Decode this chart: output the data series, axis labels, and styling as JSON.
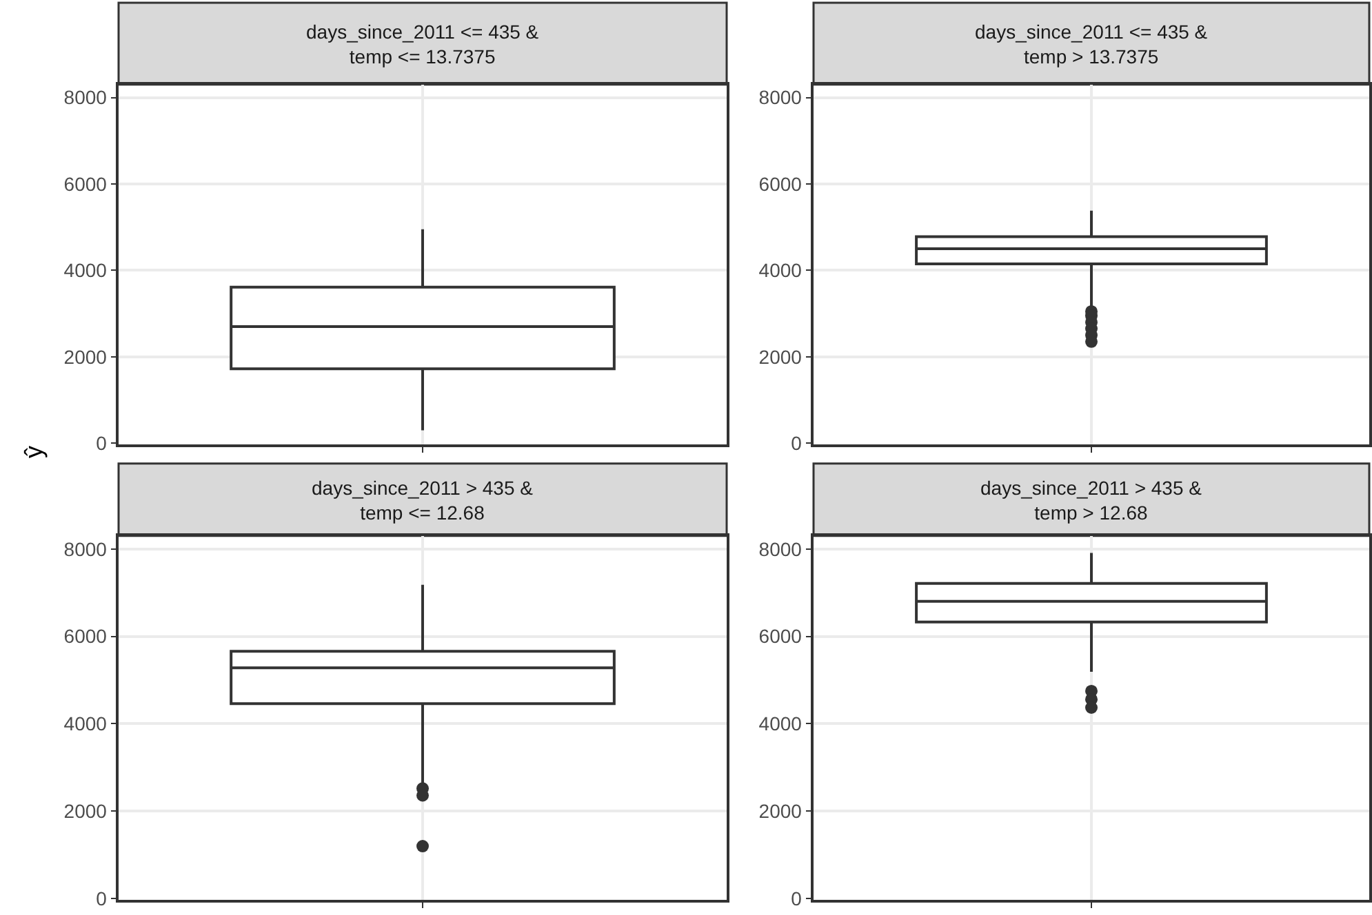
{
  "chart_data": [
    {
      "type": "box",
      "title": "days_since_2011 <= 435 &\ntemp <= 13.7375",
      "ylabel": "ŷ",
      "categories": [
        null
      ],
      "color": "#333333",
      "ylim": [
        -30,
        8300
      ],
      "yticks": [
        0,
        2000,
        4000,
        6000,
        8000
      ],
      "grid": true,
      "tick_labels": "y",
      "boxes": [
        {
          "low": 300,
          "q1": 1720,
          "median": 2700,
          "q3": 3610,
          "high": 4950
        }
      ]
    },
    {
      "type": "box",
      "title": "days_since_2011 <= 435 &\ntemp > 13.7375",
      "categories": [
        null
      ],
      "color": "#333333",
      "ylim": [
        -30,
        8300
      ],
      "yticks": [
        0,
        2000,
        4000,
        6000,
        8000
      ],
      "grid": true,
      "tick_labels": "y",
      "boxes": [
        {
          "low": 3150,
          "q1": 4150,
          "median": 4500,
          "q3": 4780,
          "high": 5380,
          "outliers": [
            3050,
            2950,
            2800,
            2650,
            2500,
            2350
          ]
        }
      ]
    },
    {
      "type": "box",
      "title": "days_since_2011 > 435 &\ntemp <= 12.68",
      "categories": [
        null
      ],
      "color": "#333333",
      "ylim": [
        -30,
        8300
      ],
      "yticks": [
        0,
        2000,
        4000,
        6000,
        8000
      ],
      "grid": true,
      "tick_labels": "y",
      "boxes": [
        {
          "low": 2650,
          "q1": 4460,
          "median": 5280,
          "q3": 5660,
          "high": 7180,
          "outliers": [
            2520,
            2360,
            1200
          ]
        }
      ]
    },
    {
      "type": "box",
      "title": "days_since_2011 > 435 &\ntemp > 12.68",
      "categories": [
        null
      ],
      "color": "#333333",
      "ylim": [
        -30,
        8300
      ],
      "yticks": [
        0,
        2000,
        4000,
        6000,
        8000
      ],
      "grid": true,
      "tick_labels": "y",
      "boxes": [
        {
          "low": 5190,
          "q1": 6330,
          "median": 6800,
          "q3": 7210,
          "high": 7910,
          "outliers": [
            4750,
            4560,
            4370
          ]
        }
      ]
    }
  ]
}
